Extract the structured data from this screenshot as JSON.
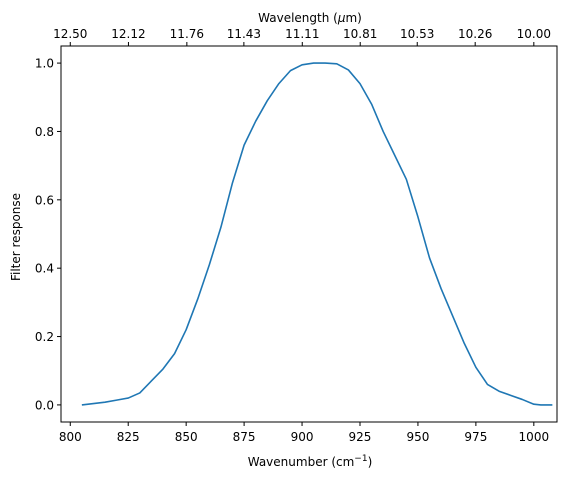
{
  "chart_data": {
    "type": "line",
    "xlabel": "Wavenumber (cm",
    "xlabel_sup": "−1",
    "xlabel_tail": ")",
    "ylabel": "Filter response",
    "top_xlabel_prefix": "Wavelength (",
    "top_xlabel_mu": "μ",
    "top_xlabel_suffix": "m)",
    "xlim": [
      796,
      1010
    ],
    "ylim": [
      -0.05,
      1.05
    ],
    "x_ticks": [
      800,
      825,
      850,
      875,
      900,
      925,
      950,
      975,
      1000
    ],
    "y_ticks": [
      0.0,
      0.2,
      0.4,
      0.6,
      0.8,
      1.0
    ],
    "y_tick_labels": [
      "0.0",
      "0.2",
      "0.4",
      "0.6",
      "0.8",
      "1.0"
    ],
    "top_ticks": [
      {
        "at": 800.0,
        "label": "12.50"
      },
      {
        "at": 825.1,
        "label": "12.12"
      },
      {
        "at": 850.3,
        "label": "11.76"
      },
      {
        "at": 874.9,
        "label": "11.43"
      },
      {
        "at": 900.1,
        "label": "11.11"
      },
      {
        "at": 925.1,
        "label": "10.81"
      },
      {
        "at": 949.7,
        "label": "10.53"
      },
      {
        "at": 974.7,
        "label": "10.26"
      },
      {
        "at": 1000.0,
        "label": "10.00"
      }
    ],
    "grid": false,
    "series": [
      {
        "color": "#1f77b4",
        "x": [
          805,
          810,
          815,
          820,
          825,
          830,
          835,
          840,
          845,
          850,
          855,
          860,
          865,
          870,
          875,
          880,
          885,
          890,
          895,
          900,
          905,
          910,
          915,
          920,
          925,
          930,
          935,
          940,
          945,
          950,
          955,
          960,
          965,
          970,
          975,
          980,
          985,
          990,
          995,
          1000,
          1003,
          1008
        ],
        "y": [
          0.0,
          0.004,
          0.008,
          0.014,
          0.02,
          0.035,
          0.07,
          0.105,
          0.15,
          0.22,
          0.31,
          0.41,
          0.52,
          0.65,
          0.76,
          0.83,
          0.89,
          0.94,
          0.978,
          0.995,
          1.0,
          1.0,
          0.998,
          0.98,
          0.94,
          0.88,
          0.8,
          0.73,
          0.66,
          0.55,
          0.43,
          0.34,
          0.26,
          0.18,
          0.11,
          0.06,
          0.04,
          0.028,
          0.016,
          0.002,
          0.0,
          0.0
        ]
      }
    ]
  }
}
